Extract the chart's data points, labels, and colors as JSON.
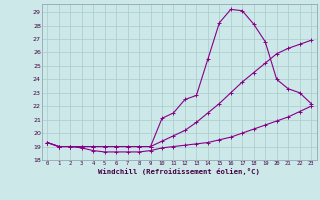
{
  "xlabel": "Windchill (Refroidissement éolien,°C)",
  "bg_color": "#cce8e8",
  "grid_color": "#aacccc",
  "line_color": "#880088",
  "xlim": [
    -0.5,
    23.5
  ],
  "ylim": [
    18.0,
    29.6
  ],
  "xticks": [
    0,
    1,
    2,
    3,
    4,
    5,
    6,
    7,
    8,
    9,
    10,
    11,
    12,
    13,
    14,
    15,
    16,
    17,
    18,
    19,
    20,
    21,
    22,
    23
  ],
  "yticks": [
    18,
    19,
    20,
    21,
    22,
    23,
    24,
    25,
    26,
    27,
    28,
    29
  ],
  "line1_x": [
    0,
    1,
    2,
    3,
    4,
    5,
    6,
    7,
    8,
    9,
    10,
    11,
    12,
    13,
    14,
    15,
    16,
    17,
    18,
    19,
    20,
    21,
    22,
    23
  ],
  "line1_y": [
    19.3,
    19.0,
    19.0,
    18.9,
    18.7,
    18.6,
    18.6,
    18.6,
    18.6,
    18.7,
    18.9,
    19.0,
    19.1,
    19.2,
    19.3,
    19.5,
    19.7,
    20.0,
    20.3,
    20.6,
    20.9,
    21.2,
    21.6,
    22.0
  ],
  "line2_x": [
    0,
    1,
    2,
    3,
    4,
    5,
    6,
    7,
    8,
    9,
    10,
    11,
    12,
    13,
    14,
    15,
    16,
    17,
    18,
    19,
    20,
    21,
    22,
    23
  ],
  "line2_y": [
    19.3,
    19.0,
    19.0,
    19.0,
    19.0,
    19.0,
    19.0,
    19.0,
    19.0,
    19.0,
    19.4,
    19.8,
    20.2,
    20.8,
    21.5,
    22.2,
    23.0,
    23.8,
    24.5,
    25.2,
    25.9,
    26.3,
    26.6,
    26.9
  ],
  "line3_x": [
    0,
    1,
    2,
    3,
    4,
    5,
    6,
    7,
    8,
    9,
    10,
    11,
    12,
    13,
    14,
    15,
    16,
    17,
    18,
    19,
    20,
    21,
    22,
    23
  ],
  "line3_y": [
    19.3,
    19.0,
    19.0,
    19.0,
    19.0,
    19.0,
    19.0,
    19.0,
    19.0,
    19.0,
    21.1,
    21.5,
    22.5,
    22.8,
    25.5,
    28.2,
    29.2,
    29.1,
    28.1,
    26.8,
    24.0,
    23.3,
    23.0,
    22.2
  ]
}
